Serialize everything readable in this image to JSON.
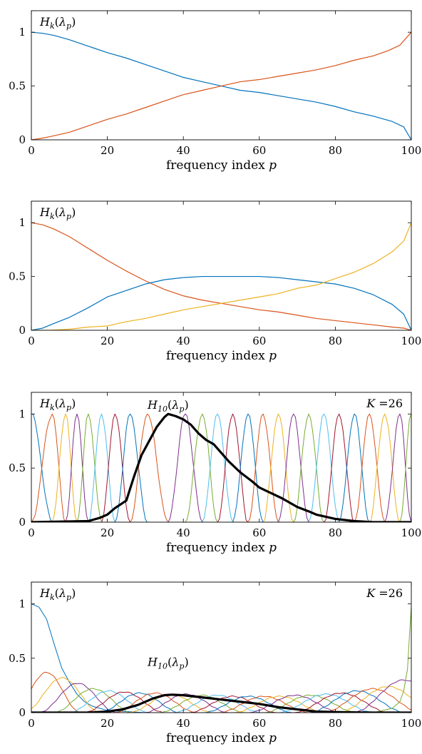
{
  "chart_data": [
    {
      "type": "line",
      "xlabel": "frequency index p",
      "xlim": [
        0,
        100
      ],
      "ylim": [
        0,
        1.2
      ],
      "xticks": [
        0,
        20,
        40,
        60,
        80,
        100
      ],
      "yticks": [
        0,
        0.5,
        1
      ],
      "grid": false,
      "annotations": [
        {
          "text": "Hk(λp)",
          "position": "top-left"
        }
      ],
      "series": [
        {
          "color": "#0072BD",
          "x": [
            0,
            3,
            6,
            10,
            15,
            20,
            25,
            30,
            35,
            40,
            45,
            50,
            55,
            60,
            65,
            70,
            75,
            80,
            85,
            90,
            95,
            98,
            100
          ],
          "y": [
            1.0,
            0.99,
            0.97,
            0.93,
            0.87,
            0.81,
            0.76,
            0.7,
            0.64,
            0.58,
            0.54,
            0.5,
            0.46,
            0.44,
            0.41,
            0.38,
            0.35,
            0.31,
            0.26,
            0.22,
            0.17,
            0.12,
            0.0
          ]
        },
        {
          "color": "#D95319",
          "x": [
            0,
            2,
            5,
            10,
            15,
            20,
            25,
            30,
            35,
            40,
            45,
            50,
            55,
            60,
            65,
            70,
            75,
            80,
            85,
            90,
            94,
            97,
            100
          ],
          "y": [
            0.0,
            0.01,
            0.03,
            0.07,
            0.13,
            0.19,
            0.24,
            0.3,
            0.36,
            0.42,
            0.46,
            0.5,
            0.54,
            0.56,
            0.59,
            0.62,
            0.65,
            0.69,
            0.74,
            0.78,
            0.83,
            0.88,
            1.0
          ]
        }
      ]
    },
    {
      "type": "line",
      "xlabel": "frequency index p",
      "xlim": [
        0,
        100
      ],
      "ylim": [
        0,
        1.2
      ],
      "xticks": [
        0,
        20,
        40,
        60,
        80,
        100
      ],
      "yticks": [
        0,
        0.5,
        1
      ],
      "grid": false,
      "annotations": [
        {
          "text": "Hk(λp)",
          "position": "top-left"
        }
      ],
      "series": [
        {
          "color": "#D95319",
          "x": [
            0,
            3,
            6,
            10,
            15,
            20,
            25,
            30,
            35,
            40,
            45,
            50,
            55,
            60,
            65,
            70,
            75,
            80,
            85,
            90,
            95,
            98,
            100
          ],
          "y": [
            1.0,
            0.98,
            0.94,
            0.87,
            0.76,
            0.65,
            0.55,
            0.46,
            0.38,
            0.32,
            0.28,
            0.25,
            0.22,
            0.19,
            0.17,
            0.14,
            0.11,
            0.09,
            0.07,
            0.05,
            0.03,
            0.02,
            0.0
          ]
        },
        {
          "color": "#0072BD",
          "x": [
            0,
            3,
            5,
            10,
            15,
            20,
            25,
            30,
            35,
            40,
            45,
            50,
            55,
            60,
            65,
            70,
            75,
            80,
            85,
            90,
            95,
            98,
            100
          ],
          "y": [
            0.0,
            0.02,
            0.05,
            0.12,
            0.21,
            0.31,
            0.37,
            0.43,
            0.47,
            0.49,
            0.5,
            0.5,
            0.5,
            0.5,
            0.49,
            0.47,
            0.45,
            0.43,
            0.39,
            0.33,
            0.24,
            0.15,
            0.0
          ]
        },
        {
          "color": "#EDB120",
          "x": [
            0,
            5,
            10,
            15,
            20,
            25,
            30,
            35,
            40,
            45,
            50,
            55,
            60,
            65,
            70,
            75,
            80,
            85,
            90,
            95,
            98,
            100
          ],
          "y": [
            0.0,
            0.0,
            0.01,
            0.03,
            0.04,
            0.08,
            0.11,
            0.15,
            0.19,
            0.22,
            0.25,
            0.28,
            0.31,
            0.34,
            0.39,
            0.42,
            0.48,
            0.54,
            0.62,
            0.73,
            0.83,
            1.0
          ]
        }
      ]
    },
    {
      "type": "line",
      "xlabel": "frequency index p",
      "xlim": [
        0,
        100
      ],
      "ylim": [
        0,
        1.2
      ],
      "xticks": [
        0,
        20,
        40,
        60,
        80,
        100
      ],
      "yticks": [
        0,
        0.5,
        1
      ],
      "grid": false,
      "annotations": [
        {
          "text": "Hk(λp)",
          "position": "top-left"
        },
        {
          "text": "H10(λp)",
          "position": "top-center"
        },
        {
          "text": "K =26",
          "position": "top-right"
        }
      ],
      "filter_bank": {
        "count": 26,
        "centers": [
          0,
          5.5,
          9,
          12,
          15,
          18.5,
          22,
          26,
          30.5,
          36,
          40.5,
          45,
          49,
          53,
          57,
          61,
          65,
          69,
          73,
          77,
          81,
          85,
          89,
          93,
          97,
          100
        ]
      },
      "highlighted_series": {
        "name": "H10",
        "color": "#000000",
        "x": [
          0,
          15,
          18,
          20,
          22,
          25,
          27,
          29,
          31,
          33,
          35,
          36,
          38,
          40,
          42,
          44,
          46,
          48,
          50,
          52,
          55,
          58,
          60,
          63,
          66,
          70,
          73,
          75,
          80,
          85,
          90,
          100
        ],
        "y": [
          0.0,
          0.01,
          0.04,
          0.07,
          0.13,
          0.2,
          0.42,
          0.62,
          0.75,
          0.88,
          0.97,
          1.0,
          0.98,
          0.95,
          0.9,
          0.82,
          0.76,
          0.72,
          0.64,
          0.56,
          0.46,
          0.38,
          0.32,
          0.27,
          0.22,
          0.14,
          0.1,
          0.07,
          0.03,
          0.01,
          0.0,
          0.0
        ]
      }
    },
    {
      "type": "line",
      "xlabel": "frequency index p",
      "xlim": [
        0,
        100
      ],
      "ylim": [
        0,
        1.2
      ],
      "xticks": [
        0,
        20,
        40,
        60,
        80,
        100
      ],
      "yticks": [
        0,
        0.5,
        1
      ],
      "grid": false,
      "annotations": [
        {
          "text": "Hk(λp)",
          "position": "top-left"
        },
        {
          "text": "H10(λp)",
          "position": "middle"
        },
        {
          "text": "K =26",
          "position": "top-right"
        }
      ],
      "first_series": {
        "color": "#0072BD",
        "x": [
          0,
          2,
          4,
          6,
          8,
          10,
          12,
          14,
          16,
          18,
          20,
          25,
          30
        ],
        "y": [
          1.0,
          0.97,
          0.86,
          0.63,
          0.41,
          0.28,
          0.17,
          0.1,
          0.06,
          0.04,
          0.02,
          0.01,
          0.0
        ]
      },
      "last_series": {
        "color": "#77AC30",
        "x": [
          90,
          95,
          97,
          98,
          99,
          99.5,
          100
        ],
        "y": [
          0.0,
          0.04,
          0.1,
          0.2,
          0.4,
          0.7,
          0.98
        ]
      },
      "bank_peaks": [
        0.37,
        0.32,
        0.27,
        0.22,
        0.2,
        0.19,
        0.18,
        0.18,
        0.17,
        0.17,
        0.16,
        0.16,
        0.15,
        0.15,
        0.15,
        0.15,
        0.16,
        0.16,
        0.17,
        0.18,
        0.2,
        0.22,
        0.24,
        0.3
      ],
      "highlighted_series": {
        "name": "H10",
        "color": "#000000",
        "x": [
          0,
          15,
          20,
          24,
          28,
          32,
          35,
          37,
          40,
          45,
          50,
          55,
          60,
          65,
          70,
          75,
          80,
          90,
          100
        ],
        "y": [
          0.0,
          0.0,
          0.01,
          0.03,
          0.07,
          0.13,
          0.16,
          0.165,
          0.16,
          0.14,
          0.12,
          0.1,
          0.08,
          0.05,
          0.03,
          0.01,
          0.005,
          0.0,
          0.0
        ]
      }
    }
  ]
}
